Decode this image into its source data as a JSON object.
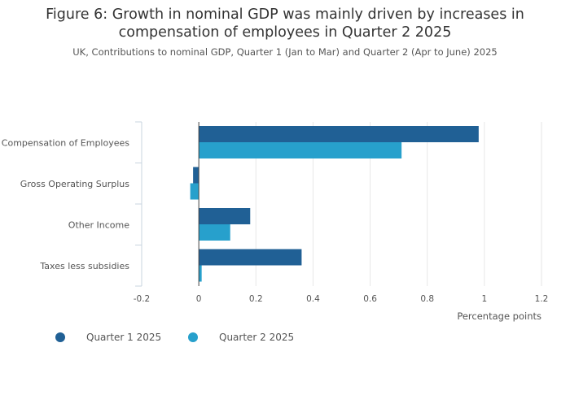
{
  "chart_data": {
    "type": "bar",
    "orientation": "horizontal",
    "title": "Figure 6: Growth in nominal GDP was mainly driven by increases in\ncompensation of employees in Quarter 2 2025",
    "subtitle": "UK, Contributions to nominal GDP, Quarter 1 (Jan to Mar) and Quarter 2 (Apr to June) 2025",
    "categories": [
      "Compensation of Employees",
      "Gross Operating Surplus",
      "Other Income",
      "Taxes less subsidies"
    ],
    "series": [
      {
        "name": "Quarter 1 2025",
        "color": "#206095",
        "values": [
          0.98,
          -0.02,
          0.18,
          0.36
        ]
      },
      {
        "name": "Quarter 2 2025",
        "color": "#27a0cc",
        "values": [
          0.71,
          -0.03,
          0.11,
          0.01
        ]
      }
    ],
    "xlabel": "Percentage points",
    "xlim": [
      -0.2,
      1.2
    ],
    "xticks": [
      -0.2,
      0,
      0.2,
      0.4,
      0.6,
      0.8,
      1,
      1.2
    ],
    "xtick_labels": [
      "-0.2",
      "0",
      "0.2",
      "0.4",
      "0.6",
      "0.8",
      "1",
      "1.2"
    ],
    "grid": true,
    "legend_position": "bottom-left"
  }
}
